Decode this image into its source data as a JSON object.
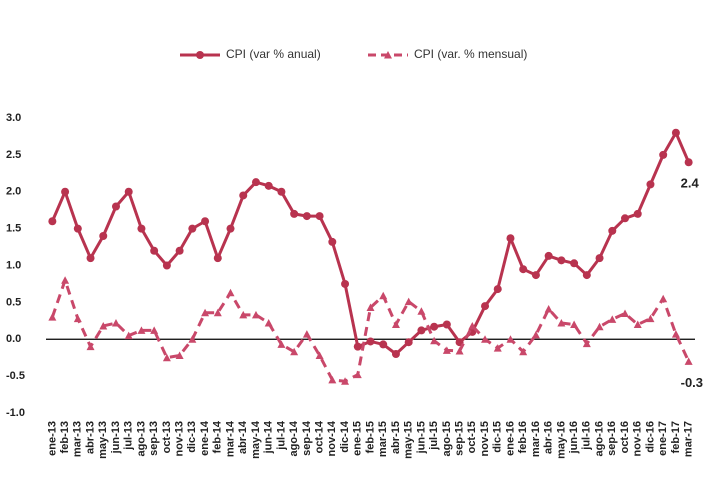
{
  "chart_data": {
    "type": "line",
    "categories": [
      "ene-13",
      "feb-13",
      "mar-13",
      "abr-13",
      "may-13",
      "jun-13",
      "jul-13",
      "ago-13",
      "sep-13",
      "oct-13",
      "nov-13",
      "dic-13",
      "ene-14",
      "feb-14",
      "mar-14",
      "abr-14",
      "may-14",
      "jun-14",
      "jul-14",
      "ago-14",
      "sep-14",
      "oct-14",
      "nov-14",
      "dic-14",
      "ene-15",
      "feb-15",
      "mar-15",
      "abr-15",
      "may-15",
      "jun-15",
      "jul-15",
      "ago-15",
      "sep-15",
      "oct-15",
      "nov-15",
      "dic-15",
      "ene-16",
      "feb-16",
      "mar-16",
      "abr-16",
      "may-16",
      "jun-16",
      "jul-16",
      "ago-16",
      "sep-16",
      "oct-16",
      "nov-16",
      "dic-16",
      "ene-17",
      "feb-17",
      "mar-17"
    ],
    "series": [
      {
        "name": "CPI (var % anual)",
        "color": "#b8334f",
        "dash": false,
        "values": [
          1.6,
          2.0,
          1.5,
          1.1,
          1.4,
          1.8,
          2.0,
          1.5,
          1.2,
          1.0,
          1.2,
          1.5,
          1.6,
          1.1,
          1.5,
          1.95,
          2.13,
          2.08,
          2.0,
          1.7,
          1.67,
          1.67,
          1.32,
          0.75,
          -0.1,
          -0.03,
          -0.07,
          -0.2,
          -0.04,
          0.12,
          0.17,
          0.2,
          -0.04,
          0.1,
          0.45,
          0.68,
          1.37,
          0.95,
          0.87,
          1.13,
          1.07,
          1.03,
          0.87,
          1.1,
          1.47,
          1.64,
          1.7,
          2.1,
          2.5,
          2.8,
          2.4
        ]
      },
      {
        "name": "CPI (var. % mensual)",
        "color": "#c9486a",
        "dash": true,
        "values": [
          0.3,
          0.8,
          0.28,
          -0.1,
          0.18,
          0.22,
          0.05,
          0.12,
          0.12,
          -0.25,
          -0.22,
          0.0,
          0.36,
          0.36,
          0.63,
          0.33,
          0.33,
          0.22,
          -0.07,
          -0.17,
          0.07,
          -0.22,
          -0.55,
          -0.57,
          -0.48,
          0.43,
          0.59,
          0.2,
          0.51,
          0.38,
          -0.02,
          -0.15,
          -0.16,
          0.18,
          0.0,
          -0.12,
          0.0,
          -0.17,
          0.06,
          0.41,
          0.22,
          0.2,
          -0.06,
          0.17,
          0.27,
          0.35,
          0.2,
          0.28,
          0.55,
          0.07,
          -0.3
        ]
      }
    ],
    "ylim": [
      -1,
      3
    ],
    "yticks": [
      {
        "value": -1,
        "label": "-1.0"
      },
      -0.5,
      {
        "value": 0,
        "label": "0.0"
      },
      0.5,
      {
        "value": 1,
        "label": "1.0"
      },
      1.5,
      {
        "value": 2,
        "label": "2.0"
      },
      2.5,
      {
        "value": 3,
        "label": "3.0"
      }
    ]
  }
}
